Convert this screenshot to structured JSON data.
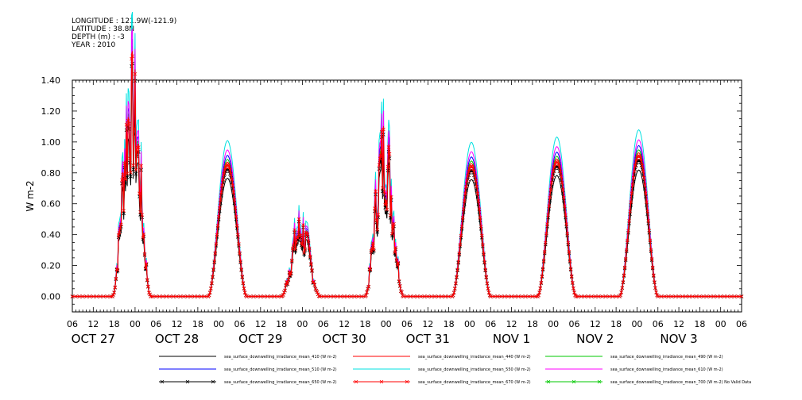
{
  "header": {
    "longitude": "LONGITUDE : 121.9W(-121.9)",
    "latitude": "LATITUDE : 38.8N",
    "depth": "DEPTH (m) : -3",
    "year": "YEAR : 2010"
  },
  "chart_data": {
    "type": "line",
    "title": "",
    "xlabel": "",
    "ylabel": "W m-2",
    "ylim": [
      -0.1,
      1.4
    ],
    "yticks": [
      "0.00",
      "0.20",
      "0.40",
      "0.60",
      "0.80",
      "1.00",
      "1.20",
      "1.40"
    ],
    "x_start_hour": 0,
    "x_end_hour": 192,
    "x_hour_labels": [
      "06",
      "12",
      "18",
      "00",
      "06",
      "12",
      "18",
      "00",
      "06",
      "12",
      "18",
      "00",
      "06",
      "12",
      "18",
      "00",
      "06",
      "12",
      "18",
      "00",
      "06",
      "12",
      "18",
      "00",
      "06",
      "12",
      "18",
      "00",
      "06",
      "12",
      "18",
      "00",
      "06"
    ],
    "day_labels": [
      "OCT 27",
      "OCT 28",
      "OCT 29",
      "OCT 30",
      "OCT 31",
      "NOV  1",
      "NOV  2",
      "NOV  3"
    ],
    "daily_peaks": [
      {
        "day": "OCT 27",
        "peak_hour": 17,
        "peak": 1.2,
        "noisy": true
      },
      {
        "day": "OCT 28",
        "peak_hour": 20.5,
        "peak": 0.87,
        "noisy": false
      },
      {
        "day": "OCT 29",
        "peak_hour": 17.5,
        "peak": 0.42,
        "noisy": true
      },
      {
        "day": "OCT 30",
        "peak_hour": 17.5,
        "peak": 0.9,
        "noisy": true
      },
      {
        "day": "OCT 31",
        "peak_hour": 18.5,
        "peak": 0.86,
        "noisy": false
      },
      {
        "day": "NOV  1",
        "peak_hour": 19,
        "peak": 0.89,
        "noisy": false
      },
      {
        "day": "NOV  2",
        "peak_hour": 18.5,
        "peak": 0.93,
        "noisy": false
      }
    ],
    "series": [
      {
        "name": "sea_surface_downwelling_irradiance_mean_410 (W m-2)",
        "color": "#000000",
        "marker": "",
        "scale": 0.88
      },
      {
        "name": "sea_surface_downwelling_irradiance_mean_440 (W m-2)",
        "color": "#ff0000",
        "marker": "",
        "scale": 1.0
      },
      {
        "name": "sea_surface_downwelling_irradiance_mean_490 (W m-2)",
        "color": "#00c800",
        "marker": "",
        "scale": 1.02
      },
      {
        "name": "sea_surface_downwelling_irradiance_mean_510 (W m-2)",
        "color": "#0000ff",
        "marker": "",
        "scale": 1.05
      },
      {
        "name": "sea_surface_downwelling_irradiance_mean_550 (W m-2)",
        "color": "#00e0e0",
        "marker": "",
        "scale": 1.16
      },
      {
        "name": "sea_surface_downwelling_irradiance_mean_610 (W m-2)",
        "color": "#ff00ff",
        "marker": "",
        "scale": 1.09
      },
      {
        "name": "sea_surface_downwelling_irradiance_mean_650 (W m-2)",
        "color": "#000000",
        "marker": "x",
        "scale": 0.95
      },
      {
        "name": "sea_surface_downwelling_irradiance_mean_670 (W m-2)",
        "color": "#ff0000",
        "marker": "x",
        "scale": 0.98
      },
      {
        "name": "sea_surface_downwelling_irradiance_mean_700 (W m-2) No Valid Data",
        "color": "#00c800",
        "marker": "x",
        "scale": 0
      }
    ]
  }
}
